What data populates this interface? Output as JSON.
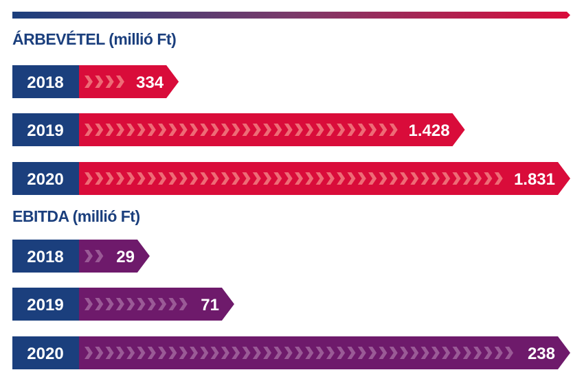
{
  "colors": {
    "navy": "#1b3f7d",
    "revenue": "#d90c3a",
    "revenue_chevron": "#ee6b76",
    "ebitda": "#6e1a6b",
    "ebitda_chevron": "#9a5a96"
  },
  "chart_data": [
    {
      "type": "bar",
      "orientation": "horizontal",
      "title": "ÁRBEVÉTEL (millió Ft)",
      "categories": [
        "2018",
        "2019",
        "2020"
      ],
      "values": [
        334,
        1428,
        1831
      ],
      "value_labels": [
        "334",
        "1.428",
        "1.831"
      ]
    },
    {
      "type": "bar",
      "orientation": "horizontal",
      "title": "EBITDA (millió Ft)",
      "categories": [
        "2018",
        "2019",
        "2020"
      ],
      "values": [
        29,
        71,
        238
      ],
      "value_labels": [
        "29",
        "71",
        "238"
      ]
    }
  ]
}
